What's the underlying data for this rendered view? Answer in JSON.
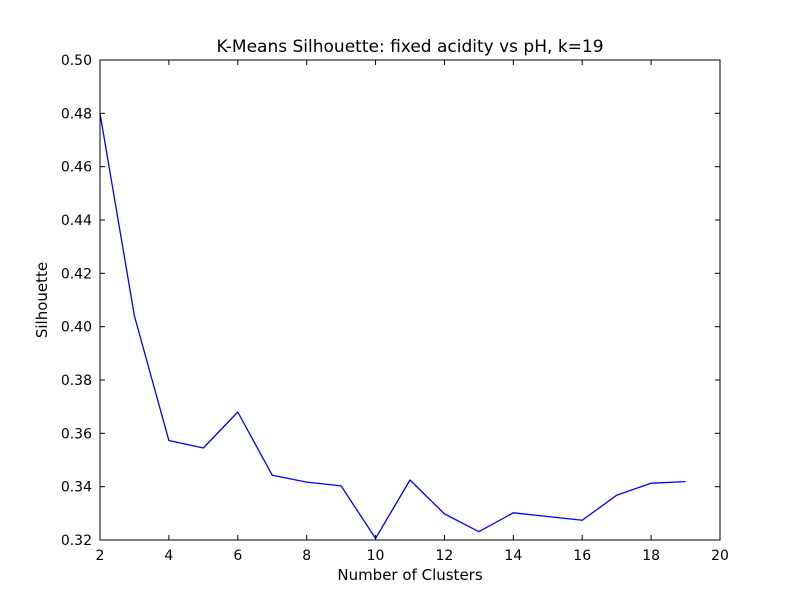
{
  "chart_data": {
    "type": "line",
    "title": "K-Means Silhouette: fixed acidity vs pH, k=19",
    "xlabel": "Number of Clusters",
    "ylabel": "Silhouette",
    "xlim": [
      2,
      20
    ],
    "ylim": [
      0.32,
      0.5
    ],
    "xticks": [
      "2",
      "4",
      "6",
      "8",
      "10",
      "12",
      "14",
      "16",
      "18",
      "20"
    ],
    "yticks": [
      "0.32",
      "0.34",
      "0.36",
      "0.38",
      "0.40",
      "0.42",
      "0.44",
      "0.46",
      "0.48",
      "0.50"
    ],
    "grid": false,
    "series": [
      {
        "color": "#0000ff",
        "x": [
          2,
          3,
          4,
          5,
          6,
          7,
          8,
          9,
          10,
          11,
          12,
          13,
          14,
          15,
          16,
          17,
          18,
          19
        ],
        "values": [
          0.48,
          0.404,
          0.3573,
          0.3545,
          0.368,
          0.3443,
          0.3417,
          0.3403,
          0.3206,
          0.3425,
          0.3298,
          0.3231,
          0.3302,
          0.3288,
          0.3274,
          0.3368,
          0.3413,
          0.3419
        ]
      }
    ]
  }
}
